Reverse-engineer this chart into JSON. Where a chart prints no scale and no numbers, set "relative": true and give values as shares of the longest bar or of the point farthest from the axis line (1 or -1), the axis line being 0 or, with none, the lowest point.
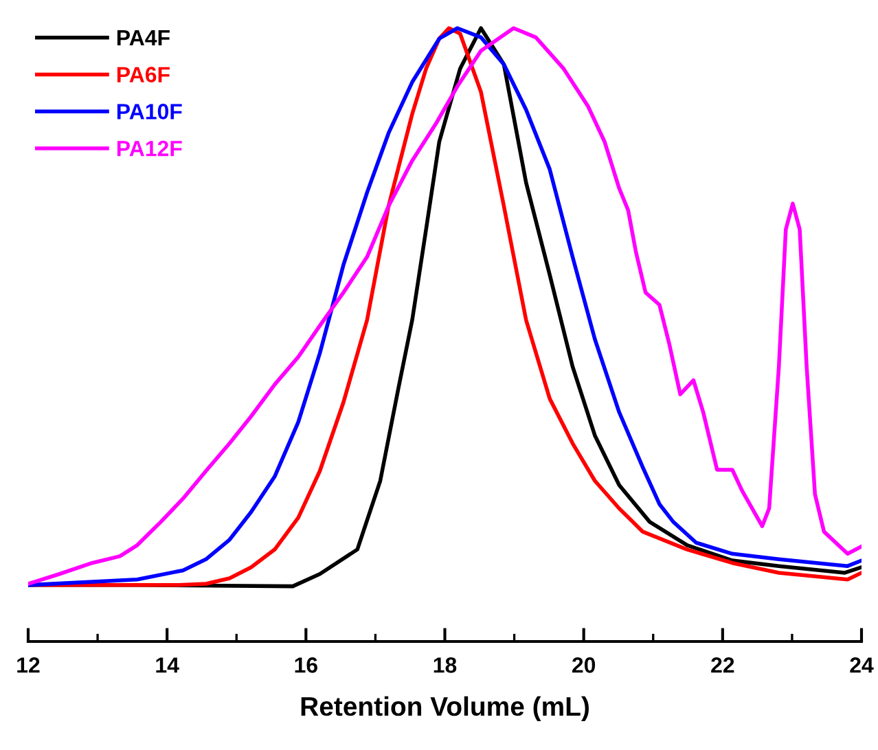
{
  "chart_data": {
    "type": "line",
    "xlabel": "Retention Volume (mL)",
    "relative": true,
    "xlim": [
      12,
      24
    ],
    "xticks": [
      12,
      14,
      16,
      18,
      20,
      22,
      24
    ],
    "tick_labels": "x",
    "legend": "top left",
    "grid": false,
    "marker": "none",
    "line_style": "solid",
    "series": [
      {
        "name": "PA4F",
        "color": "#000000",
        "x": [
          12,
          13.57,
          15.81,
          16.2,
          16.74,
          17.07,
          17.33,
          17.53,
          17.73,
          17.92,
          18.22,
          18.52,
          18.85,
          19.17,
          19.51,
          19.84,
          20.16,
          20.51,
          20.95,
          21.49,
          22.14,
          22.81,
          23.76,
          24
        ],
        "values": [
          0.092,
          0.092,
          0.09,
          0.11,
          0.15,
          0.262,
          0.412,
          0.524,
          0.672,
          0.815,
          0.934,
          1,
          0.941,
          0.748,
          0.598,
          0.448,
          0.336,
          0.255,
          0.195,
          0.157,
          0.132,
          0.123,
          0.112,
          0.121
        ]
      },
      {
        "name": "PA6F",
        "color": "#ff0000",
        "x": [
          12,
          14.17,
          14.56,
          14.9,
          15.21,
          15.55,
          15.89,
          16.2,
          16.54,
          16.88,
          17.19,
          17.53,
          17.73,
          17.92,
          18.06,
          18.22,
          18.52,
          18.85,
          19.17,
          19.51,
          19.84,
          20.16,
          20.51,
          20.85,
          21.49,
          22.14,
          22.81,
          23.8,
          24
        ],
        "values": [
          0.092,
          0.092,
          0.094,
          0.103,
          0.121,
          0.15,
          0.202,
          0.278,
          0.39,
          0.524,
          0.71,
          0.86,
          0.934,
          0.983,
          1,
          0.991,
          0.896,
          0.71,
          0.524,
          0.396,
          0.323,
          0.262,
          0.217,
          0.179,
          0.15,
          0.128,
          0.112,
          0.101,
          0.112
        ]
      },
      {
        "name": "PA10F",
        "color": "#0000ff",
        "x": [
          12,
          13.57,
          14.23,
          14.56,
          14.9,
          15.21,
          15.55,
          15.89,
          16.2,
          16.54,
          16.88,
          17.19,
          17.53,
          17.92,
          18.18,
          18.52,
          18.85,
          19.17,
          19.51,
          19.84,
          20.16,
          20.51,
          20.85,
          21.09,
          21.29,
          21.62,
          22.14,
          22.81,
          23.8,
          24
        ],
        "values": [
          0.092,
          0.101,
          0.116,
          0.134,
          0.166,
          0.211,
          0.269,
          0.358,
          0.47,
          0.614,
          0.732,
          0.829,
          0.912,
          0.983,
          1,
          0.985,
          0.941,
          0.867,
          0.77,
          0.627,
          0.493,
          0.374,
          0.284,
          0.224,
          0.195,
          0.161,
          0.143,
          0.134,
          0.123,
          0.132
        ]
      },
      {
        "name": "PA12F",
        "color": "#ff00ff",
        "x": [
          12,
          12.45,
          12.92,
          13.32,
          13.57,
          13.91,
          14.23,
          14.56,
          14.9,
          15.21,
          15.55,
          15.89,
          16.2,
          16.54,
          16.88,
          17.19,
          17.53,
          17.87,
          18.18,
          18.52,
          18.99,
          19.31,
          19.71,
          20.06,
          20.3,
          20.51,
          20.64,
          20.75,
          20.89,
          21.09,
          21.23,
          21.39,
          21.58,
          21.72,
          21.92,
          22.14,
          22.28,
          22.57,
          22.67,
          22.81,
          22.91,
          23.01,
          23.11,
          23.21,
          23.33,
          23.46,
          23.8,
          24
        ],
        "values": [
          0.094,
          0.11,
          0.128,
          0.139,
          0.157,
          0.195,
          0.233,
          0.278,
          0.323,
          0.367,
          0.419,
          0.464,
          0.515,
          0.569,
          0.627,
          0.71,
          0.784,
          0.844,
          0.905,
          0.963,
          1,
          0.985,
          0.934,
          0.873,
          0.815,
          0.739,
          0.703,
          0.636,
          0.569,
          0.549,
          0.486,
          0.403,
          0.426,
          0.374,
          0.28,
          0.28,
          0.246,
          0.188,
          0.217,
          0.448,
          0.672,
          0.714,
          0.672,
          0.448,
          0.24,
          0.179,
          0.143,
          0.155
        ]
      }
    ]
  }
}
